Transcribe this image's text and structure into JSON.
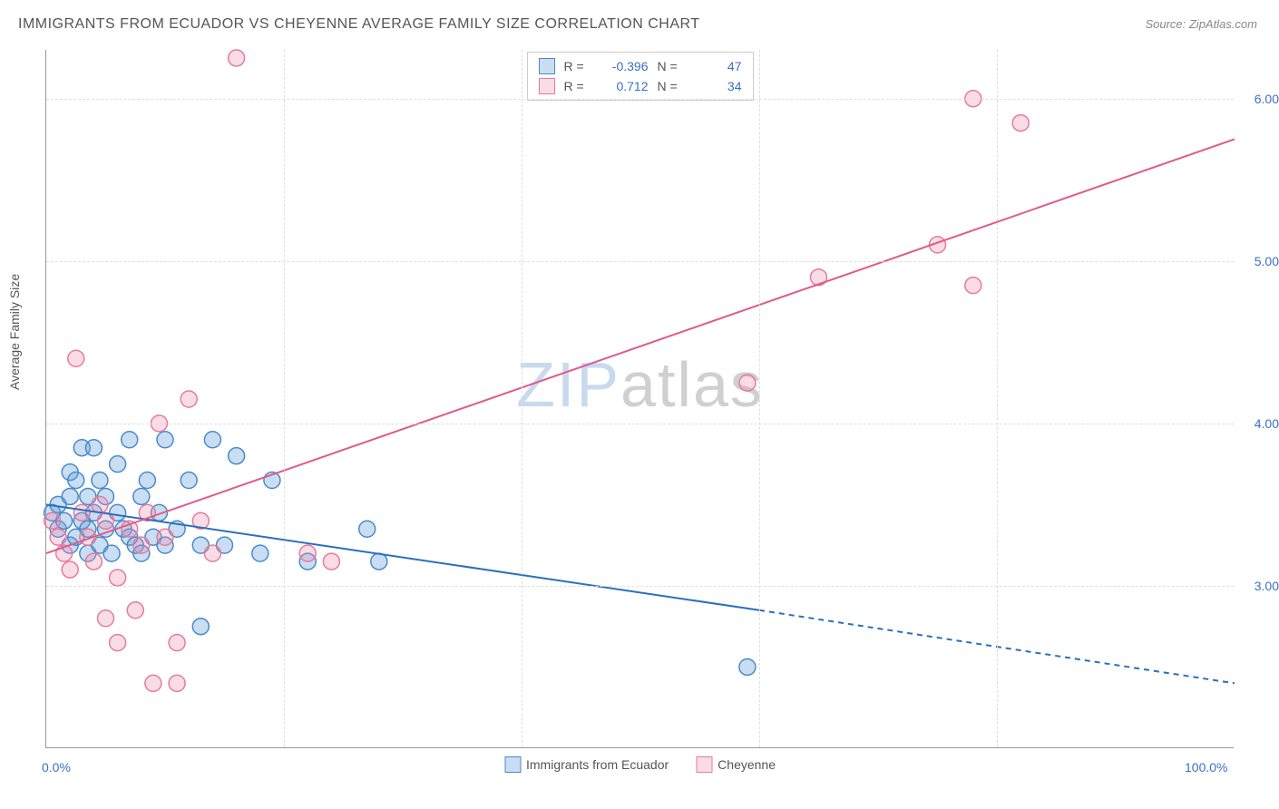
{
  "header": {
    "title": "IMMIGRANTS FROM ECUADOR VS CHEYENNE AVERAGE FAMILY SIZE CORRELATION CHART",
    "source_prefix": "Source: ",
    "source": "ZipAtlas.com"
  },
  "axes": {
    "ylabel": "Average Family Size",
    "ylim": [
      2.0,
      6.3
    ],
    "yticks": [
      3.0,
      4.0,
      5.0,
      6.0
    ],
    "ytick_labels": [
      "3.00",
      "4.00",
      "5.00",
      "6.00"
    ],
    "xlim": [
      0,
      100
    ],
    "xticks": [
      0,
      20,
      40,
      60,
      80,
      100
    ],
    "xtick_labels_shown": {
      "0": "0.0%",
      "100": "100.0%"
    }
  },
  "colors": {
    "series_blue_fill": "rgba(100,160,220,0.35)",
    "series_blue_stroke": "#4a8ac9",
    "series_pink_fill": "rgba(240,140,170,0.3)",
    "series_pink_stroke": "#e57ba0",
    "trend_blue": "#2b6fbf",
    "trend_pink": "#e05a8a",
    "tick_text": "#3b6fc4",
    "grid": "#dddddd",
    "axis": "#999999",
    "background": "#ffffff"
  },
  "stats": {
    "r_label": "R =",
    "n_label": "N =",
    "blue": {
      "r": "-0.396",
      "n": "47"
    },
    "pink": {
      "r": "0.712",
      "n": "34"
    }
  },
  "legend": {
    "blue_label": "Immigrants from Ecuador",
    "pink_label": "Cheyenne"
  },
  "watermark": {
    "part1": "ZIP",
    "part2": "atlas"
  },
  "marker_radius": 9,
  "series_blue": {
    "points": [
      [
        0.5,
        3.45
      ],
      [
        1,
        3.35
      ],
      [
        1,
        3.5
      ],
      [
        1.5,
        3.4
      ],
      [
        2,
        3.25
      ],
      [
        2,
        3.55
      ],
      [
        2,
        3.7
      ],
      [
        2.5,
        3.3
      ],
      [
        2.5,
        3.65
      ],
      [
        3,
        3.4
      ],
      [
        3,
        3.85
      ],
      [
        3.5,
        3.35
      ],
      [
        3.5,
        3.2
      ],
      [
        3.5,
        3.55
      ],
      [
        4,
        3.85
      ],
      [
        4,
        3.45
      ],
      [
        4.5,
        3.25
      ],
      [
        4.5,
        3.65
      ],
      [
        5,
        3.35
      ],
      [
        5,
        3.55
      ],
      [
        5.5,
        3.2
      ],
      [
        6,
        3.45
      ],
      [
        6,
        3.75
      ],
      [
        6.5,
        3.35
      ],
      [
        7,
        3.3
      ],
      [
        7,
        3.9
      ],
      [
        7.5,
        3.25
      ],
      [
        8,
        3.55
      ],
      [
        8,
        3.2
      ],
      [
        8.5,
        3.65
      ],
      [
        9,
        3.3
      ],
      [
        9.5,
        3.45
      ],
      [
        10,
        3.9
      ],
      [
        10,
        3.25
      ],
      [
        11,
        3.35
      ],
      [
        12,
        3.65
      ],
      [
        13,
        2.75
      ],
      [
        13,
        3.25
      ],
      [
        14,
        3.9
      ],
      [
        15,
        3.25
      ],
      [
        16,
        3.8
      ],
      [
        18,
        3.2
      ],
      [
        19,
        3.65
      ],
      [
        22,
        3.15
      ],
      [
        27,
        3.35
      ],
      [
        28,
        3.15
      ],
      [
        59,
        2.5
      ]
    ],
    "trend": {
      "x1": 0,
      "y1": 3.5,
      "x2_solid": 60,
      "y2_solid": 2.85,
      "x2": 100,
      "y2": 2.4
    }
  },
  "series_pink": {
    "points": [
      [
        0.5,
        3.4
      ],
      [
        1,
        3.3
      ],
      [
        1.5,
        3.2
      ],
      [
        2,
        3.1
      ],
      [
        2.5,
        4.4
      ],
      [
        3,
        3.45
      ],
      [
        3.5,
        3.3
      ],
      [
        4,
        3.15
      ],
      [
        4.5,
        3.5
      ],
      [
        5,
        2.8
      ],
      [
        5,
        3.4
      ],
      [
        6,
        3.05
      ],
      [
        6,
        2.65
      ],
      [
        7,
        3.35
      ],
      [
        7.5,
        2.85
      ],
      [
        8,
        3.25
      ],
      [
        8.5,
        3.45
      ],
      [
        9,
        2.4
      ],
      [
        9.5,
        4.0
      ],
      [
        10,
        3.3
      ],
      [
        11,
        2.65
      ],
      [
        11,
        2.4
      ],
      [
        12,
        4.15
      ],
      [
        13,
        3.4
      ],
      [
        14,
        3.2
      ],
      [
        16,
        6.25
      ],
      [
        22,
        3.2
      ],
      [
        24,
        3.15
      ],
      [
        59,
        4.25
      ],
      [
        65,
        4.9
      ],
      [
        75,
        5.1
      ],
      [
        78,
        4.85
      ],
      [
        78,
        6.0
      ],
      [
        82,
        5.85
      ]
    ],
    "trend": {
      "x1": 0,
      "y1": 3.2,
      "x2": 100,
      "y2": 5.75
    }
  }
}
